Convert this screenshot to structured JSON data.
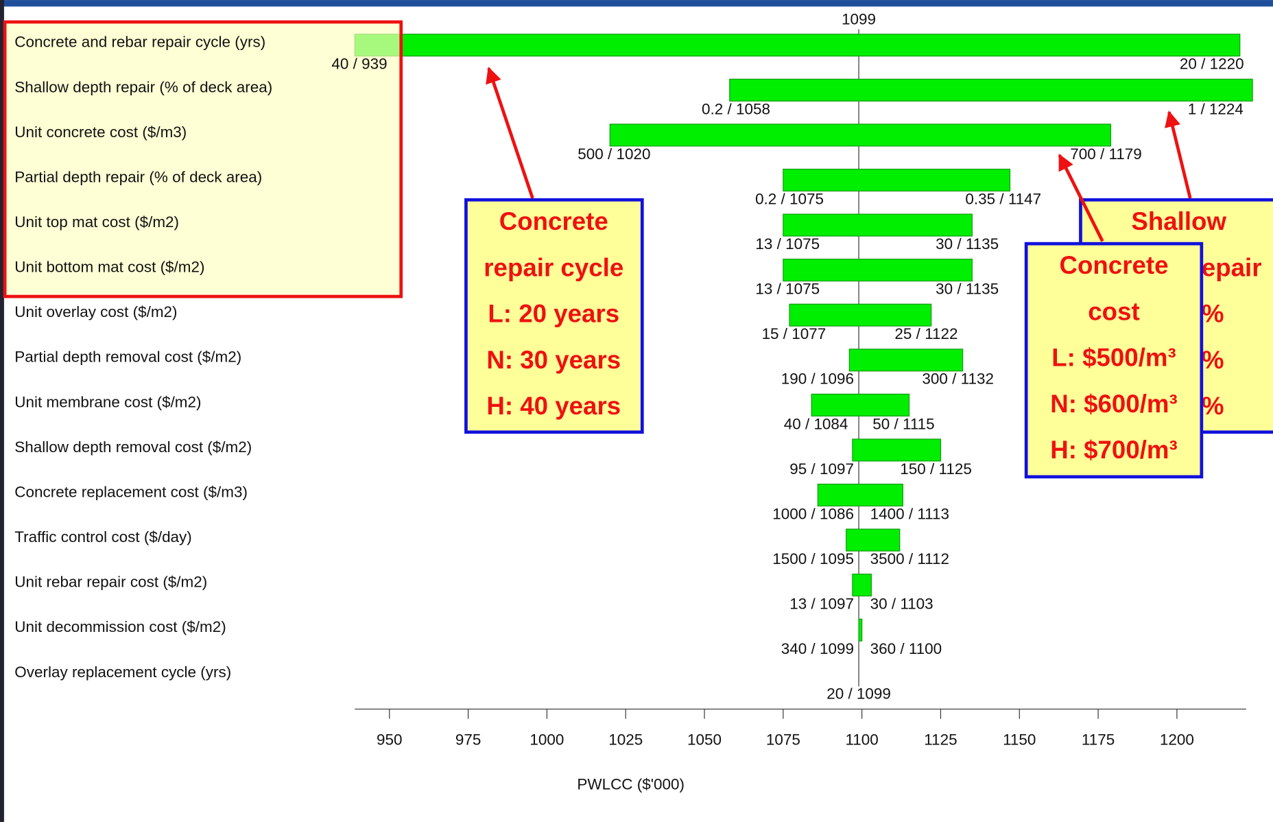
{
  "chart_data": {
    "type": "tornado",
    "base": 1099,
    "x_label": "PWLCC ($'000)",
    "categories": [
      "Concrete and rebar repair cycle (yrs)",
      "Shallow depth repair (% of deck area)",
      "Unit concrete cost ($/m3)",
      "Partial depth repair (% of deck area)",
      "Unit top mat cost ($/m2)",
      "Unit bottom mat cost ($/m2)",
      "Unit overlay cost ($/m2)",
      "Partial depth removal cost ($/m2)",
      "Unit membrane cost ($/m2)",
      "Shallow depth removal cost ($/m2)",
      "Concrete replacement cost ($/m3)",
      "Traffic control cost ($/day)",
      "Unit rebar repair cost ($/m2)",
      "Unit decommission cost ($/m2)",
      "Overlay replacement cycle (yrs)"
    ],
    "low_values": [
      939,
      1058,
      1020,
      1075,
      1075,
      1075,
      1077,
      1096,
      1084,
      1097,
      1086,
      1095,
      1097,
      1099,
      1099
    ],
    "low_labels": [
      "40 / 939",
      "0.2 / 1058",
      "500 / 1020",
      "0.2 / 1075",
      "13 / 1075",
      "13 / 1075",
      "15 / 1077",
      "190 / 1096",
      "40 / 1084",
      "95 / 1097",
      "1000 / 1086",
      "1500 / 1095",
      "13 / 1097",
      "340 / 1099",
      "20 / 1099"
    ],
    "high_values": [
      1220,
      1224,
      1179,
      1147,
      1135,
      1135,
      1122,
      1132,
      1115,
      1125,
      1113,
      1112,
      1103,
      1100,
      null
    ],
    "high_labels": [
      "20 / 1220",
      "1 / 1224",
      "700 / 1179",
      "0.35 / 1147",
      "30 / 1135",
      "30 / 1135",
      "25 / 1122",
      "300 / 1132",
      "50 / 1115",
      "150 / 1125",
      "1400 / 1113",
      "3500 / 1112",
      "30 / 1103",
      "360 / 1100",
      null
    ],
    "color": "#00ee00",
    "xlim": [
      939,
      1222
    ],
    "xticks": [
      950,
      975,
      1000,
      1025,
      1050,
      1075,
      1100,
      1125,
      1150,
      1175,
      1200
    ],
    "annotations": [
      {
        "lines": [
          "Shallow",
          "epair",
          "%",
          "%",
          "%"
        ]
      },
      {
        "lines": [
          "Concrete",
          "repair cycle",
          "L: 20 years",
          "N: 30 years",
          "H: 40 years"
        ]
      },
      {
        "lines": [
          "Concrete",
          "cost",
          "L: $500/m³",
          "N: $600/m³",
          "H: $700/m³"
        ]
      }
    ]
  }
}
